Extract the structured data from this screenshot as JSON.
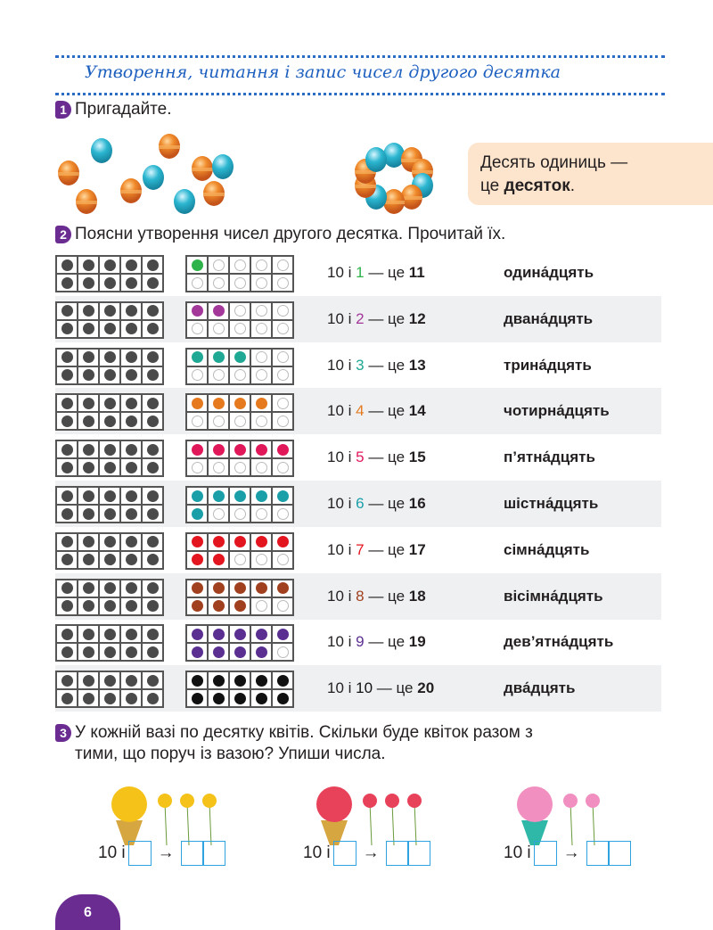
{
  "section_title": "Утворення, читання і запис чисел другого десятка",
  "task1": {
    "number": "1",
    "text": "Пригадайте.",
    "note_line1": "Десять одиниць —",
    "note_line2_prefix": "це ",
    "note_line2_bold": "десяток",
    "note_line2_suffix": "."
  },
  "task2": {
    "number": "2",
    "text": "Поясни утворення чисел другого десятка. Прочитай їх.",
    "rows": [
      {
        "ones": 1,
        "color": "#2db34a",
        "prefix": "10 і ",
        "mid": " — це ",
        "result": "11",
        "word": "одина́дцять"
      },
      {
        "ones": 2,
        "color": "#a3379a",
        "prefix": "10 і ",
        "mid": " — це ",
        "result": "12",
        "word": "двана́дцять"
      },
      {
        "ones": 3,
        "color": "#1fa894",
        "prefix": "10 і ",
        "mid": " — це ",
        "result": "13",
        "word": "трина́дцять"
      },
      {
        "ones": 4,
        "color": "#e57a1f",
        "prefix": "10 і ",
        "mid": " — це ",
        "result": "14",
        "word": "чотирна́дцять"
      },
      {
        "ones": 5,
        "color": "#e0185a",
        "prefix": "10 і ",
        "mid": " — це ",
        "result": "15",
        "word": "п’ятна́дцять"
      },
      {
        "ones": 6,
        "color": "#1a9fa8",
        "prefix": "10 і ",
        "mid": " — це ",
        "result": "16",
        "word": "шістна́дцять"
      },
      {
        "ones": 7,
        "color": "#e3151f",
        "prefix": "10 і ",
        "mid": " — це ",
        "result": "17",
        "word": "сімна́дцять"
      },
      {
        "ones": 8,
        "color": "#a0401f",
        "prefix": "10 і ",
        "mid": " — це ",
        "result": "18",
        "word": "вісімна́дцять"
      },
      {
        "ones": 9,
        "color": "#5a2f91",
        "prefix": "10 і ",
        "mid": " — це ",
        "result": "19",
        "word": "дев’ятна́дцять"
      },
      {
        "ones": 10,
        "color": "#111111",
        "prefix": "10 і ",
        "mid": " — це ",
        "result": "20",
        "word": "два́дцять"
      }
    ]
  },
  "task3": {
    "number": "3",
    "line1": "У кожній вазі по десятку квітів. Скільки буде квіток разом з",
    "line2": "тими, що поруч із вазою? Упиши числа.",
    "items": [
      {
        "flowers": "daffodils",
        "label": "10 і",
        "arrow": "→"
      },
      {
        "flowers": "tulips",
        "label": "10 і",
        "arrow": "→"
      },
      {
        "flowers": "roses",
        "label": "10 і",
        "arrow": "→"
      }
    ]
  },
  "page_number": "6"
}
